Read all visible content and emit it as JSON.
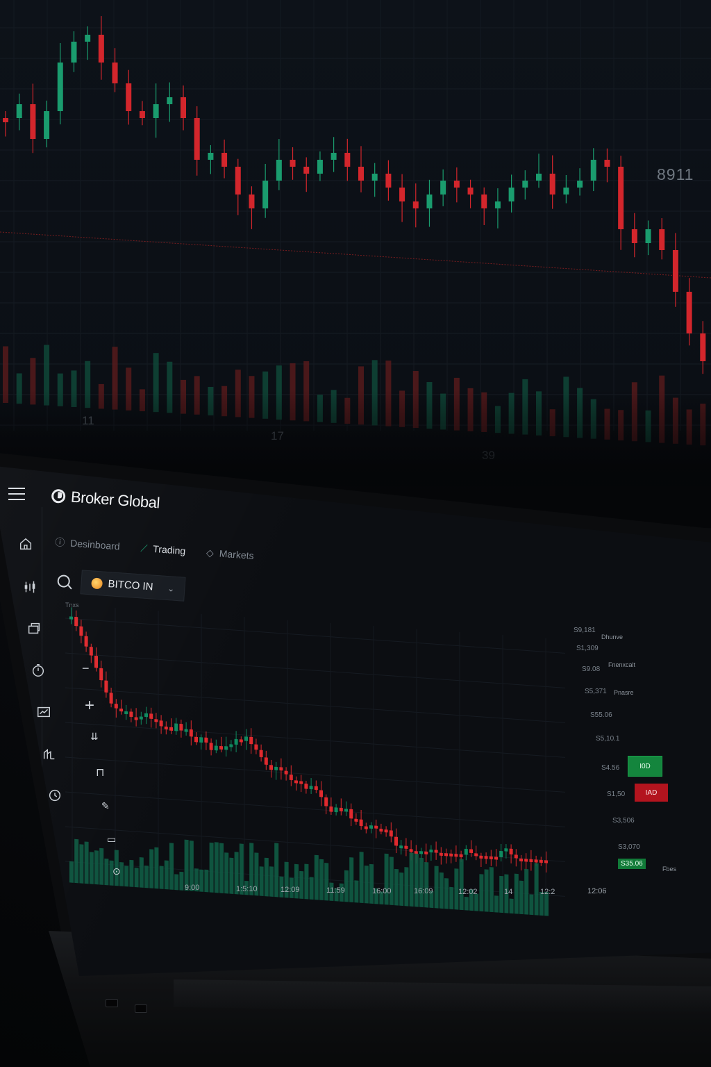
{
  "background_monitor": {
    "price_label": "8911",
    "time_ticks": [
      "11",
      "17",
      "39"
    ],
    "colors": {
      "up": "#1a9c6e",
      "down": "#d3262c",
      "background": "#0d1219"
    }
  },
  "app": {
    "brand": "Broker Global",
    "nav_tabs": [
      {
        "label": "Desinboard",
        "icon": "dashboard-icon"
      },
      {
        "label": "Trading",
        "icon": "trading-icon"
      },
      {
        "label": "Markets",
        "icon": "tag-icon"
      }
    ],
    "symbol_select": {
      "label": "BITCO IN",
      "icon": "bitcoin-icon"
    },
    "chart_caption": "Tnxs",
    "sidebar_icons": [
      "home-icon",
      "candles-icon",
      "layers-icon",
      "timer-icon",
      "chart-icon",
      "portfolio-icon",
      "history-icon"
    ],
    "drawing_tools": [
      "minus-icon",
      "plus-icon",
      "trend-icon",
      "bracket-icon",
      "pen-icon",
      "note-icon",
      "settings-icon"
    ],
    "price_ticks": [
      "S9,181",
      "S1,309",
      "S9.08",
      "S5,371",
      "S55.06",
      "S5,10.1",
      "S4.56",
      "S1,50",
      "S3,506",
      "S3,070"
    ],
    "panel_items": [
      "Dhunve",
      "Fnenxcalt",
      "Pnasre"
    ],
    "buy_label": "I0D",
    "sell_label": "IAD",
    "last_price": "S35.06",
    "bottom_panel_label": "Fbes",
    "time_axis": [
      "9:00",
      "1:5:10",
      "12:09",
      "11:59",
      "16:00",
      "16:09",
      "12:02",
      "14",
      "12:2",
      "12:06"
    ],
    "colors": {
      "up": "#0f8a5f",
      "down": "#e02a2e",
      "volume": "#0f5c45"
    }
  },
  "chart_data": {
    "type": "candlestick",
    "title": "",
    "series": [],
    "x": [
      "9:00",
      "1:5:10",
      "12:09",
      "11:59",
      "16:00",
      "16:09",
      "12:02",
      "14",
      "12:2",
      "12:06"
    ],
    "trend": "down",
    "note": ""
  }
}
